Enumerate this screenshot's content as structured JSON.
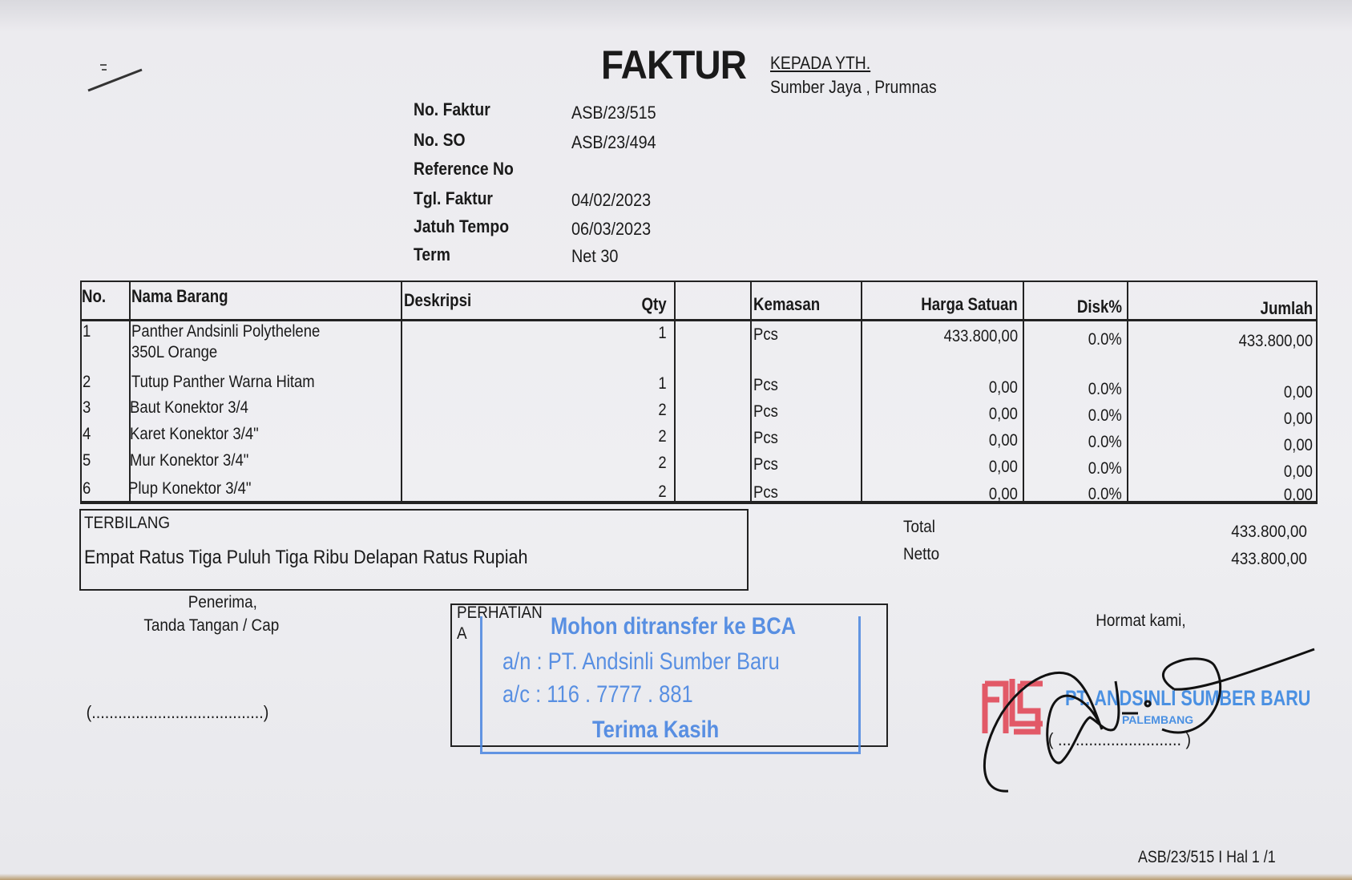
{
  "document": {
    "title": "FAKTUR",
    "recipient_label": "KEPADA YTH.",
    "recipient": "Sumber Jaya , Prumnas",
    "fields": [
      {
        "label": "No. Faktur",
        "value": "ASB/23/515"
      },
      {
        "label": "No. SO",
        "value": "ASB/23/494"
      },
      {
        "label": "Reference No",
        "value": ""
      },
      {
        "label": "Tgl. Faktur",
        "value": "04/02/2023"
      },
      {
        "label": "Jatuh Tempo",
        "value": "06/03/2023"
      },
      {
        "label": "Term",
        "value": "Net 30"
      }
    ]
  },
  "table": {
    "headers": {
      "no": "No.",
      "nama": "Nama Barang",
      "deskripsi": "Deskripsi",
      "qty": "Qty",
      "kemasan": "Kemasan",
      "harga": "Harga Satuan",
      "disk": "Disk%",
      "jumlah": "Jumlah"
    },
    "rows": [
      {
        "no": "1",
        "nama": "Panther Andsinli Polythelene",
        "nama2": "350L Orange",
        "qty": "1",
        "kemasan": "Pcs",
        "harga": "433.800,00",
        "disk": "0.0%",
        "jumlah": "433.800,00"
      },
      {
        "no": "2",
        "nama": "Tutup Panther Warna Hitam",
        "qty": "1",
        "kemasan": "Pcs",
        "harga": "0,00",
        "disk": "0.0%",
        "jumlah": "0,00"
      },
      {
        "no": "3",
        "nama": "Baut Konektor 3/4",
        "qty": "2",
        "kemasan": "Pcs",
        "harga": "0,00",
        "disk": "0.0%",
        "jumlah": "0,00"
      },
      {
        "no": "4",
        "nama": "Karet Konektor 3/4\"",
        "qty": "2",
        "kemasan": "Pcs",
        "harga": "0,00",
        "disk": "0.0%",
        "jumlah": "0,00"
      },
      {
        "no": "5",
        "nama": "Mur Konektor 3/4\"",
        "qty": "2",
        "kemasan": "Pcs",
        "harga": "0,00",
        "disk": "0.0%",
        "jumlah": "0,00"
      },
      {
        "no": "6",
        "nama": "Plup Konektor 3/4\"",
        "qty": "2",
        "kemasan": "Pcs",
        "harga": "0,00",
        "disk": "0.0%",
        "jumlah": "0,00"
      }
    ]
  },
  "terbilang": {
    "label": "TERBILANG",
    "text": "Empat Ratus Tiga Puluh Tiga Ribu Delapan Ratus Rupiah"
  },
  "totals": {
    "total_label": "Total",
    "total": "433.800,00",
    "netto_label": "Netto",
    "netto": "433.800,00"
  },
  "receiver": {
    "line1": "Penerima,",
    "line2": "Tanda Tangan / Cap",
    "sign_line": "(.......................................)"
  },
  "perhatian": {
    "label": "PERHATIAN",
    "label2": "A"
  },
  "stamp": {
    "line1": "Mohon ditransfer ke BCA",
    "line2": "a/n : PT. Andsinli Sumber Baru",
    "line3": "a/c : 116 . 7777 . 881",
    "line4": "Terima Kasih",
    "color": "#3f7fe0"
  },
  "sender": {
    "greeting": "Hormat kami,",
    "sign_line": "( ............................ )",
    "company_stamp": "PT. ANDSINLI SUMBER BARU",
    "company_city": "PALEMBANG",
    "logo_color": "#e0404f"
  },
  "footer": {
    "page_ref": "ASB/23/515 I Hal 1 /1"
  }
}
